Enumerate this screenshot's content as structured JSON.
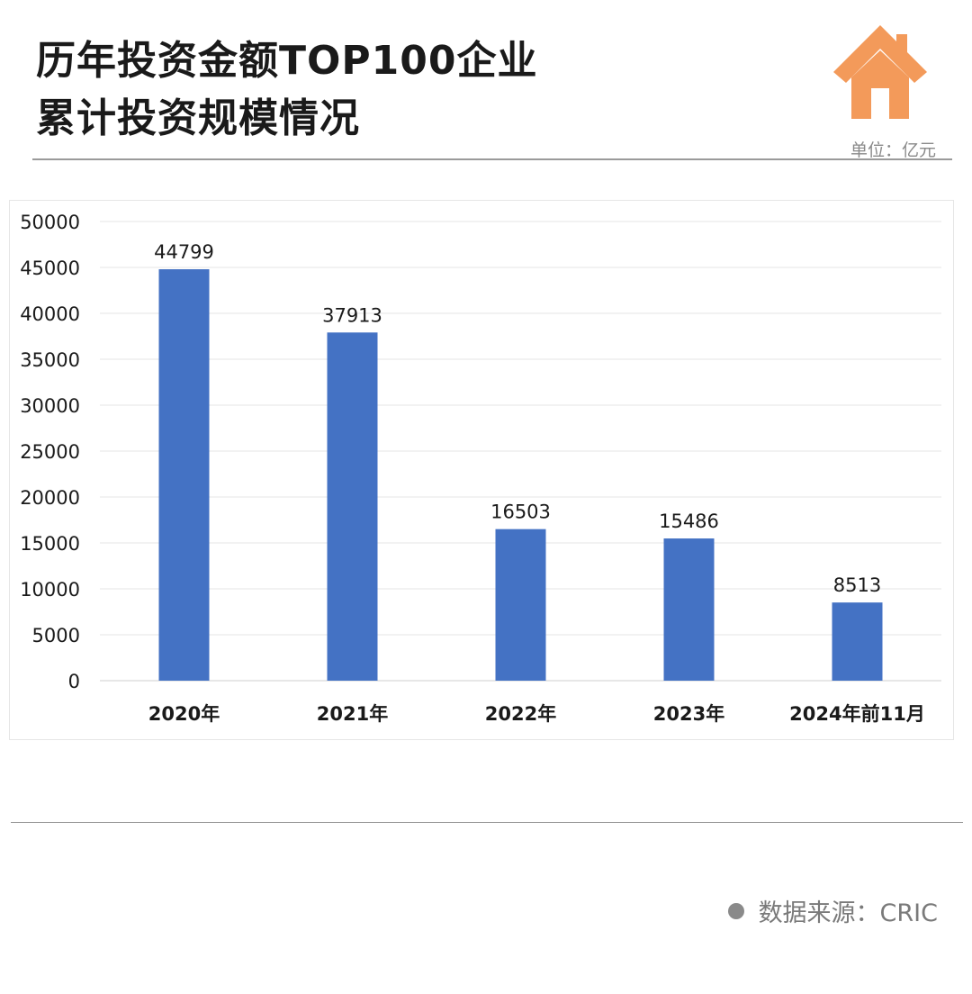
{
  "title_line1": "历年投资金额TOP100企业",
  "title_line2": "累计投资规模情况",
  "unit_label": "单位：亿元",
  "source_label": "数据来源：CRIC",
  "colors": {
    "bar": "#4472C4",
    "house": "#F39A5A",
    "grid": "#E4E4E4",
    "text": "#1A1A1A"
  },
  "chart_data": {
    "type": "bar",
    "categories": [
      "2020年",
      "2021年",
      "2022年",
      "2023年",
      "2024年前11月"
    ],
    "values": [
      44799,
      37913,
      16503,
      15486,
      8513
    ],
    "data_labels": [
      "44799",
      "37913",
      "16503",
      "15486",
      "8513"
    ],
    "y_ticks": [
      0,
      5000,
      10000,
      15000,
      20000,
      25000,
      30000,
      35000,
      40000,
      45000,
      50000
    ],
    "ylim": [
      0,
      50000
    ],
    "grid": true,
    "legend": "none",
    "title": "",
    "xlabel": "",
    "ylabel": ""
  }
}
